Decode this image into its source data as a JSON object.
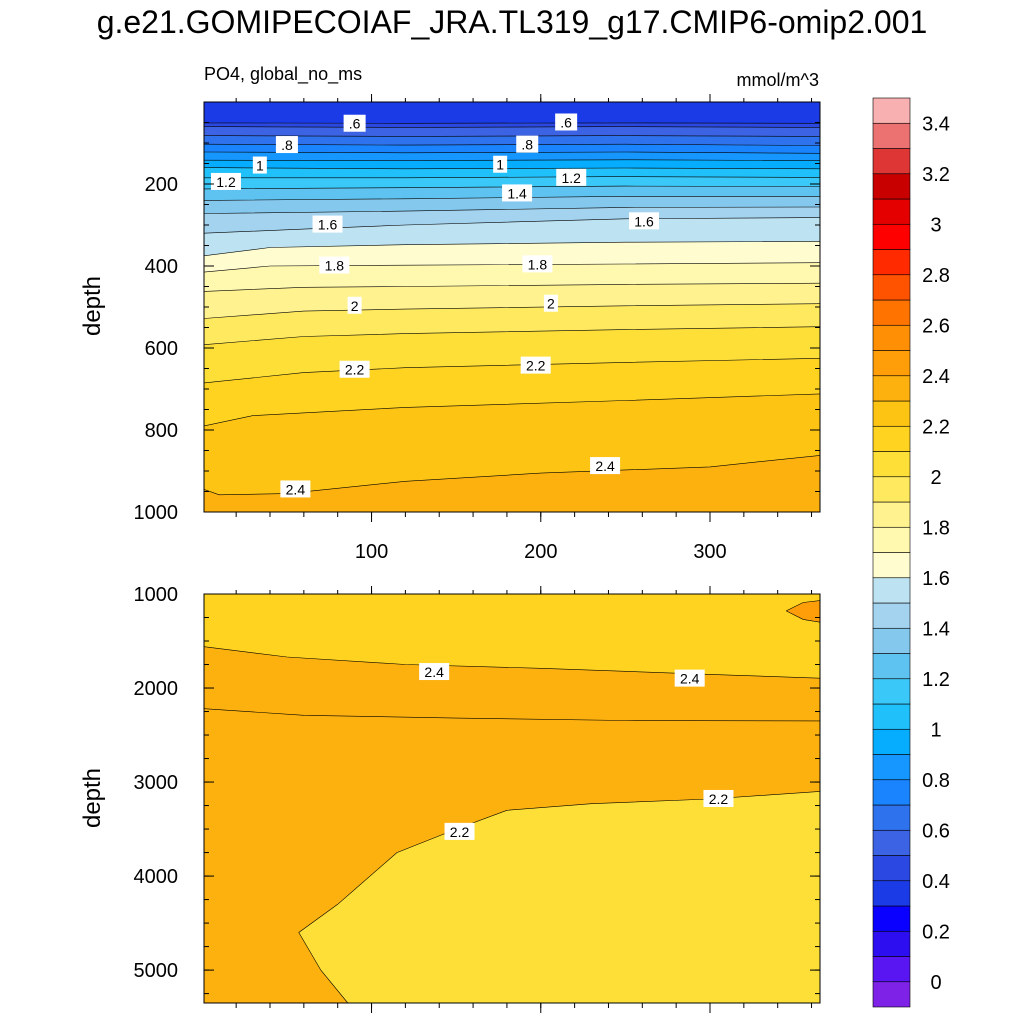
{
  "title": "g.e21.GOMIPECOIAF_JRA.TL319_g17.CMIP6-omip2.001",
  "chart_data": {
    "type": "contour",
    "variable_label": "PO4, global_no_ms",
    "units": "mmol/m^3",
    "x_range": [
      1,
      365
    ],
    "colorbar": {
      "levels": [
        0,
        0.1,
        0.2,
        0.3,
        0.4,
        0.5,
        0.6,
        0.7,
        0.8,
        0.9,
        1.0,
        1.1,
        1.2,
        1.3,
        1.4,
        1.5,
        1.6,
        1.7,
        1.8,
        1.9,
        2.0,
        2.1,
        2.2,
        2.3,
        2.4,
        2.5,
        2.6,
        2.7,
        2.8,
        2.9,
        3.0,
        3.1,
        3.2,
        3.3,
        3.4,
        3.5
      ],
      "tick_labels": [
        "0",
        "0.2",
        "0.4",
        "0.6",
        "0.8",
        "1",
        "1.2",
        "1.4",
        "1.6",
        "1.8",
        "2",
        "2.2",
        "2.4",
        "2.6",
        "2.8",
        "3",
        "3.2",
        "3.4"
      ],
      "colors": [
        "#7f22e8",
        "#5a16f2",
        "#2d0ef0",
        "#0a00ff",
        "#1a3be6",
        "#2b49e2",
        "#3b63e4",
        "#2f72ee",
        "#1a84ff",
        "#1597ff",
        "#06adff",
        "#20c0fa",
        "#39c8f8",
        "#5ec3f1",
        "#84c8ee",
        "#a4d3f0",
        "#bde3f2",
        "#fffdd0",
        "#fff9b0",
        "#fff28f",
        "#ffe95f",
        "#fddf38",
        "#ffd320",
        "#fdc414",
        "#fdb10f",
        "#ff9e08",
        "#ff8f05",
        "#ff7400",
        "#ff5300",
        "#ff2a00",
        "#ff0000",
        "#e50000",
        "#c80000",
        "#de3535",
        "#ec7272",
        "#f8b0b0"
      ]
    },
    "panels": [
      {
        "id": "upper",
        "ylabel": "depth",
        "y_range": [
          1000,
          0
        ],
        "y_ticks": [
          200,
          400,
          600,
          800,
          1000
        ],
        "x_ticks": [
          100,
          200,
          300
        ],
        "x_tick_labels": [
          "100",
          "200",
          "300"
        ],
        "contour_lines": [
          {
            "level": 0.5,
            "depth": [
              [
                1,
                51
              ],
              [
                120,
                52
              ],
              [
                250,
                51
              ],
              [
                365,
                52
              ]
            ]
          },
          {
            "level": 0.6,
            "depth": [
              [
                1,
                60
              ],
              [
                120,
                62
              ],
              [
                250,
                60
              ],
              [
                365,
                62
              ]
            ]
          },
          {
            "level": 0.7,
            "depth": [
              [
                1,
                82
              ],
              [
                120,
                84
              ],
              [
                250,
                82
              ],
              [
                365,
                84
              ]
            ]
          },
          {
            "level": 0.8,
            "depth": [
              [
                1,
                103
              ],
              [
                120,
                105
              ],
              [
                250,
                103
              ],
              [
                365,
                106
              ]
            ]
          },
          {
            "level": 0.9,
            "depth": [
              [
                1,
                122
              ],
              [
                120,
                124
              ],
              [
                250,
                122
              ],
              [
                365,
                125
              ]
            ]
          },
          {
            "level": 1.0,
            "depth": [
              [
                1,
                142
              ],
              [
                120,
                143
              ],
              [
                250,
                141
              ],
              [
                365,
                143
              ]
            ]
          },
          {
            "level": 1.1,
            "depth": [
              [
                1,
                160
              ],
              [
                120,
                163
              ],
              [
                250,
                161
              ],
              [
                365,
                163
              ]
            ]
          },
          {
            "level": 1.2,
            "depth": [
              [
                1,
                185
              ],
              [
                120,
                185
              ],
              [
                250,
                182
              ],
              [
                365,
                184
              ]
            ]
          },
          {
            "level": 1.3,
            "depth": [
              [
                1,
                212
              ],
              [
                120,
                209
              ],
              [
                250,
                205
              ],
              [
                365,
                206
              ]
            ]
          },
          {
            "level": 1.4,
            "depth": [
              [
                1,
                240
              ],
              [
                120,
                236
              ],
              [
                250,
                230
              ],
              [
                365,
                230
              ]
            ]
          },
          {
            "level": 1.5,
            "depth": [
              [
                1,
                272
              ],
              [
                120,
                266
              ],
              [
                250,
                257
              ],
              [
                365,
                256
              ]
            ]
          },
          {
            "level": 1.6,
            "depth": [
              [
                1,
                320
              ],
              [
                60,
                310
              ],
              [
                120,
                300
              ],
              [
                250,
                285
              ],
              [
                365,
                282
              ]
            ]
          },
          {
            "level": 1.7,
            "depth": [
              [
                1,
                375
              ],
              [
                40,
                355
              ],
              [
                120,
                348
              ],
              [
                250,
                342
              ],
              [
                365,
                340
              ]
            ]
          },
          {
            "level": 1.8,
            "depth": [
              [
                1,
                415
              ],
              [
                40,
                400
              ],
              [
                120,
                398
              ],
              [
                250,
                395
              ],
              [
                365,
                392
              ]
            ]
          },
          {
            "level": 1.9,
            "depth": [
              [
                1,
                462
              ],
              [
                60,
                452
              ],
              [
                120,
                450
              ],
              [
                250,
                445
              ],
              [
                365,
                442
              ]
            ]
          },
          {
            "level": 2.0,
            "depth": [
              [
                1,
                528
              ],
              [
                60,
                510
              ],
              [
                120,
                505
              ],
              [
                250,
                497
              ],
              [
                365,
                492
              ]
            ]
          },
          {
            "level": 2.1,
            "depth": [
              [
                1,
                592
              ],
              [
                60,
                572
              ],
              [
                120,
                565
              ],
              [
                250,
                555
              ],
              [
                365,
                548
              ]
            ]
          },
          {
            "level": 2.2,
            "depth": [
              [
                1,
                685
              ],
              [
                60,
                660
              ],
              [
                120,
                648
              ],
              [
                250,
                635
              ],
              [
                365,
                625
              ]
            ]
          },
          {
            "level": 2.3,
            "depth": [
              [
                1,
                790
              ],
              [
                30,
                765
              ],
              [
                120,
                745
              ],
              [
                250,
                728
              ],
              [
                365,
                712
              ]
            ]
          },
          {
            "level": 2.4,
            "depth": [
              [
                1,
                945
              ],
              [
                10,
                958
              ],
              [
                50,
                955
              ],
              [
                120,
                925
              ],
              [
                200,
                905
              ],
              [
                300,
                890
              ],
              [
                365,
                862
              ]
            ]
          }
        ],
        "contour_labels": [
          {
            "text": ".6",
            "x": 90,
            "depth": 53
          },
          {
            "text": ".6",
            "x": 215,
            "depth": 50
          },
          {
            "text": ".8",
            "x": 50,
            "depth": 105
          },
          {
            "text": ".8",
            "x": 192,
            "depth": 104
          },
          {
            "text": "1",
            "x": 34,
            "depth": 155
          },
          {
            "text": "1",
            "x": 176,
            "depth": 153
          },
          {
            "text": "1.2",
            "x": 14,
            "depth": 195
          },
          {
            "text": "1.2",
            "x": 218,
            "depth": 185
          },
          {
            "text": "1.4",
            "x": 186,
            "depth": 223
          },
          {
            "text": "1.6",
            "x": 74,
            "depth": 299
          },
          {
            "text": "1.6",
            "x": 261,
            "depth": 291
          },
          {
            "text": "1.8",
            "x": 78,
            "depth": 399
          },
          {
            "text": "1.8",
            "x": 198,
            "depth": 396
          },
          {
            "text": "2",
            "x": 90,
            "depth": 497
          },
          {
            "text": "2",
            "x": 206,
            "depth": 492
          },
          {
            "text": "2.2",
            "x": 90,
            "depth": 653
          },
          {
            "text": "2.2",
            "x": 197,
            "depth": 643
          },
          {
            "text": "2.4",
            "x": 55,
            "depth": 945
          },
          {
            "text": "2.4",
            "x": 238,
            "depth": 888
          }
        ]
      },
      {
        "id": "lower",
        "ylabel": "depth",
        "y_range": [
          5350,
          1000
        ],
        "y_ticks": [
          1000,
          2000,
          3000,
          4000,
          5000
        ],
        "x_ticks": [
          100,
          200,
          300
        ],
        "contour_lines": [
          {
            "level": 2.4,
            "depth": [
              [
                1,
                1560
              ],
              [
                50,
                1670
              ],
              [
                120,
                1750
              ],
              [
                200,
                1790
              ],
              [
                300,
                1855
              ],
              [
                365,
                1895
              ]
            ]
          },
          {
            "level": 2.3,
            "depth": [
              [
                1,
                2220
              ],
              [
                60,
                2290
              ],
              [
                150,
                2320
              ],
              [
                250,
                2345
              ],
              [
                365,
                2350
              ]
            ]
          },
          {
            "level": 2.2,
            "depth": [
              [
                86,
                5350
              ],
              [
                70,
                5000
              ],
              [
                57,
                4600
              ],
              [
                80,
                4300
              ],
              [
                115,
                3750
              ],
              [
                150,
                3500
              ],
              [
                180,
                3300
              ],
              [
                230,
                3230
              ],
              [
                300,
                3180
              ],
              [
                365,
                3100
              ]
            ]
          },
          {
            "level": 2.5,
            "depth": [
              [
                345,
                1180
              ],
              [
                355,
                1090
              ],
              [
                365,
                1070
              ],
              [
                365,
                1300
              ],
              [
                355,
                1270
              ],
              [
                345,
                1180
              ]
            ]
          }
        ],
        "contour_labels": [
          {
            "text": "2.4",
            "x": 137,
            "depth": 1830
          },
          {
            "text": "2.4",
            "x": 288,
            "depth": 1900
          },
          {
            "text": "2.2",
            "x": 305,
            "depth": 3180
          },
          {
            "text": "2.2",
            "x": 152,
            "depth": 3530
          }
        ]
      }
    ]
  }
}
